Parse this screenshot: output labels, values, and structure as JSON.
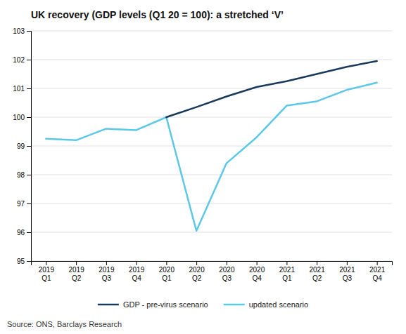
{
  "chart_data": {
    "type": "line",
    "title": "UK recovery (GDP levels (Q1 20 = 100): a stretched ‘V’",
    "annotations": [
      "Source: ONS, Barclays Research"
    ],
    "categories": [
      "2019\nQ1",
      "2019\nQ2",
      "2019\nQ3",
      "2019\nQ4",
      "2020\nQ1",
      "2020\nQ2",
      "2020\nQ3",
      "2020\nQ4",
      "2021\nQ1",
      "2021\nQ2",
      "2021\nQ3",
      "2021\nQ4"
    ],
    "series": [
      {
        "name": "GDP - pre-virus scenario",
        "color": "#1a3a5c",
        "values": [
          null,
          null,
          null,
          null,
          100.0,
          100.35,
          100.72,
          101.05,
          101.25,
          101.5,
          101.75,
          101.95
        ]
      },
      {
        "name": "updated scenario",
        "color": "#5bc8e8",
        "values": [
          99.25,
          99.2,
          99.6,
          99.55,
          100.0,
          96.05,
          98.4,
          99.3,
          100.4,
          100.55,
          100.95,
          101.2
        ]
      }
    ],
    "ylim": [
      95,
      103
    ],
    "yticks": [
      95,
      96,
      97,
      98,
      99,
      100,
      101,
      102,
      103
    ],
    "grid": true,
    "legend": "bottom"
  }
}
